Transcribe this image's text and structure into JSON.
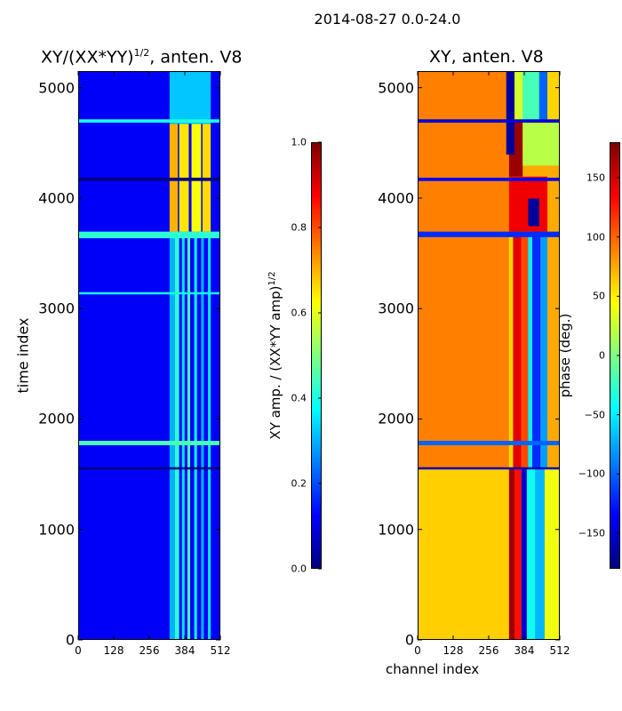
{
  "title": "2014-08-27 0.0-24.0",
  "chart_data": [
    {
      "type": "heatmap",
      "title_main": "XY/(XX*YY)",
      "title_exp": "1/2",
      "title_tail": ", anten. V8",
      "ylabel": "time index",
      "xlabel": "",
      "xlim": [
        0,
        512
      ],
      "ylim": [
        0,
        5150
      ],
      "xticks": [
        0,
        128,
        256,
        384,
        512
      ],
      "xtick_labels": [
        "0",
        "128",
        "256",
        "384",
        "512"
      ],
      "yticks": [
        0,
        1000,
        2000,
        3000,
        4000,
        5000
      ],
      "ytick_labels": [
        "0",
        "1000",
        "2000",
        "3000",
        "4000",
        "5000"
      ],
      "colorbar": {
        "label_main": "XY amp. / (XX*YY amp)",
        "label_exp": "1/2",
        "range": [
          0.0,
          1.0
        ],
        "ticks": [
          0.0,
          0.2,
          0.4,
          0.6,
          0.8,
          1.0
        ],
        "tick_labels": [
          "0.0",
          "0.2",
          "0.4",
          "0.6",
          "0.8",
          "1.0"
        ],
        "colormap": [
          "#00007f",
          "#0000ff",
          "#0080ff",
          "#00ffff",
          "#80ff80",
          "#ffff00",
          "#ff8000",
          "#ff0000",
          "#7f0000"
        ]
      },
      "regions": [
        {
          "t0": 0,
          "t1": 5150,
          "c0": 0,
          "c1": 512,
          "value": 0.12
        },
        {
          "t0": 0,
          "t1": 3700,
          "c0": 330,
          "c1": 350,
          "value": 0.3
        },
        {
          "t0": 0,
          "t1": 3700,
          "c0": 350,
          "c1": 365,
          "value": 0.42
        },
        {
          "t0": 0,
          "t1": 3700,
          "c0": 375,
          "c1": 385,
          "value": 0.35
        },
        {
          "t0": 0,
          "t1": 3700,
          "c0": 395,
          "c1": 405,
          "value": 0.45
        },
        {
          "t0": 0,
          "t1": 3700,
          "c0": 420,
          "c1": 430,
          "value": 0.38
        },
        {
          "t0": 0,
          "t1": 3700,
          "c0": 445,
          "c1": 455,
          "value": 0.3
        },
        {
          "t0": 0,
          "t1": 3700,
          "c0": 470,
          "c1": 480,
          "value": 0.35
        },
        {
          "t0": 3700,
          "t1": 4680,
          "c0": 330,
          "c1": 360,
          "value": 0.7
        },
        {
          "t0": 3700,
          "t1": 4680,
          "c0": 365,
          "c1": 400,
          "value": 0.65
        },
        {
          "t0": 3700,
          "t1": 4680,
          "c0": 410,
          "c1": 445,
          "value": 0.62
        },
        {
          "t0": 3700,
          "t1": 4680,
          "c0": 450,
          "c1": 480,
          "value": 0.66
        },
        {
          "t0": 4680,
          "t1": 5150,
          "c0": 330,
          "c1": 480,
          "value": 0.32
        },
        {
          "t0": 1540,
          "t1": 1560,
          "c0": 0,
          "c1": 512,
          "value": 0.0
        },
        {
          "t0": 1760,
          "t1": 1800,
          "c0": 0,
          "c1": 512,
          "value": 0.45
        },
        {
          "t0": 3130,
          "t1": 3150,
          "c0": 0,
          "c1": 512,
          "value": 0.4
        },
        {
          "t0": 3640,
          "t1": 3700,
          "c0": 0,
          "c1": 512,
          "value": 0.42
        },
        {
          "t0": 4160,
          "t1": 4190,
          "c0": 0,
          "c1": 512,
          "value": 0.0
        },
        {
          "t0": 4690,
          "t1": 4720,
          "c0": 0,
          "c1": 512,
          "value": 0.4
        }
      ]
    },
    {
      "type": "heatmap",
      "title_main": "XY, anten. V8",
      "ylabel": "",
      "xlabel": "channel index",
      "xlim": [
        0,
        512
      ],
      "ylim": [
        0,
        5150
      ],
      "xticks": [
        0,
        128,
        256,
        384,
        512
      ],
      "xtick_labels": [
        "0",
        "128",
        "256",
        "384",
        "512"
      ],
      "yticks": [
        0,
        1000,
        2000,
        3000,
        4000,
        5000
      ],
      "ytick_labels": [
        "0",
        "1000",
        "2000",
        "3000",
        "4000",
        "5000"
      ],
      "colorbar": {
        "label_main": "phase (deg.)",
        "range": [
          -180,
          180
        ],
        "ticks": [
          -150,
          -100,
          -50,
          0,
          50,
          100,
          150
        ],
        "tick_labels": [
          "−150",
          "−100",
          "−50",
          "0",
          "50",
          "100",
          "150"
        ],
        "colormap": [
          "#00007f",
          "#0000ff",
          "#0080ff",
          "#00ffff",
          "#80ff80",
          "#ffff00",
          "#ff8000",
          "#ff0000",
          "#7f0000"
        ]
      },
      "regions": [
        {
          "t0": 0,
          "t1": 5150,
          "c0": 0,
          "c1": 512,
          "value": 75
        },
        {
          "t0": 0,
          "t1": 1550,
          "c0": 0,
          "c1": 330,
          "value": 62
        },
        {
          "t0": 1550,
          "t1": 5150,
          "c0": 0,
          "c1": 330,
          "value": 90
        },
        {
          "t0": 1550,
          "t1": 3700,
          "c0": 330,
          "c1": 345,
          "value": 60
        },
        {
          "t0": 1550,
          "t1": 3700,
          "c0": 345,
          "c1": 375,
          "value": 145
        },
        {
          "t0": 1550,
          "t1": 3700,
          "c0": 375,
          "c1": 400,
          "value": 110
        },
        {
          "t0": 1550,
          "t1": 3700,
          "c0": 400,
          "c1": 415,
          "value": -50
        },
        {
          "t0": 1550,
          "t1": 3700,
          "c0": 415,
          "c1": 445,
          "value": -120
        },
        {
          "t0": 1550,
          "t1": 3700,
          "c0": 445,
          "c1": 470,
          "value": -80
        },
        {
          "t0": 0,
          "t1": 1550,
          "c0": 330,
          "c1": 350,
          "value": 170
        },
        {
          "t0": 0,
          "t1": 1550,
          "c0": 350,
          "c1": 375,
          "value": 130
        },
        {
          "t0": 0,
          "t1": 1550,
          "c0": 375,
          "c1": 395,
          "value": -150
        },
        {
          "t0": 0,
          "t1": 1550,
          "c0": 395,
          "c1": 425,
          "value": -40
        },
        {
          "t0": 0,
          "t1": 1550,
          "c0": 425,
          "c1": 460,
          "value": -70
        },
        {
          "t0": 0,
          "t1": 1550,
          "c0": 460,
          "c1": 512,
          "value": 40
        },
        {
          "t0": 3700,
          "t1": 4200,
          "c0": 330,
          "c1": 470,
          "value": 140
        },
        {
          "t0": 3750,
          "t1": 4000,
          "c0": 400,
          "c1": 440,
          "value": -170
        },
        {
          "t0": 4200,
          "t1": 4700,
          "c0": 330,
          "c1": 380,
          "value": 170
        },
        {
          "t0": 4300,
          "t1": 4700,
          "c0": 380,
          "c1": 512,
          "value": 20
        },
        {
          "t0": 4400,
          "t1": 4700,
          "c0": 320,
          "c1": 350,
          "value": -170
        },
        {
          "t0": 4700,
          "t1": 5150,
          "c0": 320,
          "c1": 350,
          "value": -170
        },
        {
          "t0": 4700,
          "t1": 5150,
          "c0": 350,
          "c1": 380,
          "value": 30
        },
        {
          "t0": 4700,
          "t1": 5150,
          "c0": 380,
          "c1": 440,
          "value": -20
        },
        {
          "t0": 4700,
          "t1": 5150,
          "c0": 440,
          "c1": 470,
          "value": -100
        },
        {
          "t0": 4700,
          "t1": 5150,
          "c0": 470,
          "c1": 512,
          "value": 60
        },
        {
          "t0": 1540,
          "t1": 1560,
          "c0": 0,
          "c1": 512,
          "value": -160
        },
        {
          "t0": 1760,
          "t1": 1800,
          "c0": 0,
          "c1": 512,
          "value": -100
        },
        {
          "t0": 3650,
          "t1": 3700,
          "c0": 0,
          "c1": 512,
          "value": -120
        },
        {
          "t0": 4160,
          "t1": 4190,
          "c0": 0,
          "c1": 512,
          "value": -140
        },
        {
          "t0": 4690,
          "t1": 4720,
          "c0": 0,
          "c1": 512,
          "value": -150
        }
      ]
    }
  ]
}
